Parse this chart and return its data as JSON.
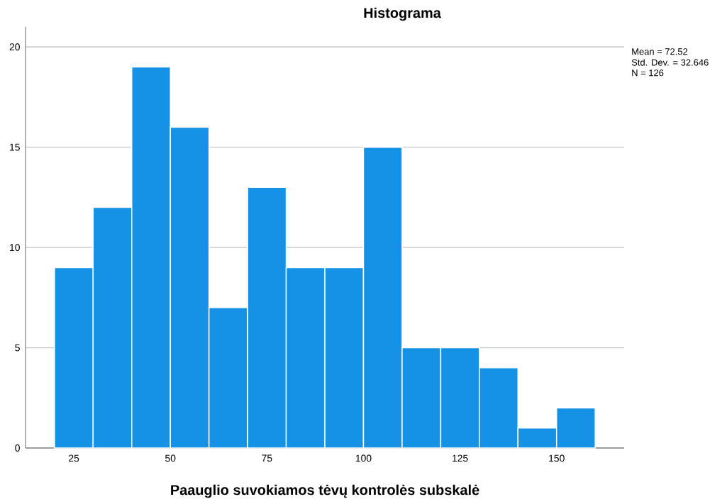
{
  "chart_data": {
    "type": "histogram",
    "title": "Histograma",
    "xlabel": "Paauglio suvokiamos tėvų kontrolės subskalė",
    "bins": [
      20,
      30,
      40,
      50,
      60,
      70,
      80,
      90,
      100,
      110,
      120,
      130,
      140,
      150,
      160
    ],
    "values": [
      9,
      12,
      19,
      16,
      7,
      13,
      9,
      9,
      15,
      5,
      5,
      4,
      1,
      2
    ],
    "color": "#1591e6",
    "xlim": [
      12.5,
      167.5
    ],
    "ylim": [
      0,
      21
    ],
    "xticks": [
      25,
      50,
      75,
      100,
      125,
      150
    ],
    "yticks": [
      0,
      5,
      10,
      15,
      20
    ],
    "grid": "y",
    "annotations": [
      "Mean = 72.52",
      "Std. Dev. = 32.646",
      "N = 126"
    ]
  }
}
